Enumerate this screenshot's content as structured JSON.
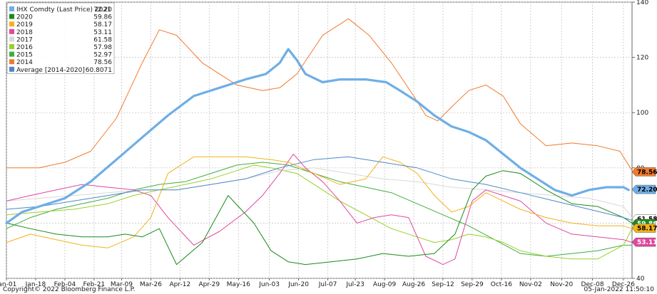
{
  "footer": {
    "copyright": "Copyright© 2022 Bloomberg Finance L.P.",
    "timestamp": "05-Jan-2022 11:50:10"
  },
  "chart_data": {
    "type": "line",
    "x_labels": [
      "Jan-01",
      "Jan-18",
      "Feb-04",
      "Feb-21",
      "Mar-09",
      "Mar-26",
      "Apr-12",
      "Apr-29",
      "May-16",
      "Jun-03",
      "Jun-20",
      "Jul-07",
      "Jul-23",
      "Aug-09",
      "Aug-26",
      "Sep-12",
      "Sep-29",
      "Oct-16",
      "Nov-02",
      "Nov-20",
      "Dec-08",
      "Dec-26"
    ],
    "x_label_days": [
      1,
      18,
      35,
      52,
      68,
      85,
      102,
      119,
      136,
      154,
      171,
      188,
      204,
      221,
      238,
      255,
      272,
      289,
      306,
      324,
      342,
      360
    ],
    "xlim": [
      1,
      365
    ],
    "ylim": [
      40,
      140
    ],
    "y_ticks": [
      40,
      60,
      80,
      100,
      120,
      140
    ],
    "y_tick_labels": [
      "40",
      "60",
      "80",
      "100",
      "120",
      "140"
    ],
    "grid": true,
    "legend_position": "top-left",
    "legend": [
      {
        "name": "IHX Comdty (Last Price) 2021",
        "value": "72.20",
        "color": "#6eaee6"
      },
      {
        "name": "2020",
        "value": "59.86",
        "color": "#1a8a1a"
      },
      {
        "name": "2019",
        "value": "58.17",
        "color": "#f2b21a"
      },
      {
        "name": "2018",
        "value": "53.11",
        "color": "#e0489e"
      },
      {
        "name": "2017",
        "value": "61.58",
        "color": "#d8d8d8"
      },
      {
        "name": "2016",
        "value": "57.98",
        "color": "#98d02a"
      },
      {
        "name": "2015",
        "value": "52.97",
        "color": "#3fae3f"
      },
      {
        "name": "2014",
        "value": "78.56",
        "color": "#f07a2e"
      },
      {
        "name": "Average  [2014-2020]",
        "value": "60.8071",
        "color": "#4d87c9"
      }
    ],
    "right_tags": [
      {
        "label": "78.56",
        "value": 78.56,
        "bg": "#f07a2e",
        "fg": "#000000"
      },
      {
        "label": "72.20",
        "value": 72.2,
        "bg": "#6eaee6",
        "fg": "#000000"
      },
      {
        "label": "61.58",
        "value": 61.58,
        "bg": "#ffffff",
        "fg": "#000000"
      },
      {
        "label": "59.86",
        "value": 59.86,
        "bg": "#1a8a1a",
        "fg": "#ffffff"
      },
      {
        "label": "58.17",
        "value": 58.17,
        "bg": "#f2b21a",
        "fg": "#000000"
      },
      {
        "label": "53.11",
        "value": 53.11,
        "bg": "#e0489e",
        "fg": "#ffffff"
      }
    ],
    "series": [
      {
        "name": "2014",
        "color": "#f07a2e",
        "width": 1,
        "x": [
          1,
          20,
          35,
          50,
          65,
          80,
          90,
          100,
          115,
          135,
          150,
          160,
          170,
          185,
          200,
          212,
          225,
          238,
          245,
          252,
          260,
          270,
          280,
          290,
          300,
          315,
          330,
          345,
          358,
          365
        ],
        "y": [
          80,
          80,
          82,
          86,
          98,
          118,
          130,
          128,
          118,
          110,
          108,
          109,
          114,
          128,
          134,
          128,
          118,
          106,
          99,
          97,
          102,
          108,
          110,
          106,
          96,
          88,
          89,
          88,
          86,
          79
        ]
      },
      {
        "name": "2015",
        "color": "#3fae3f",
        "width": 1,
        "x": [
          1,
          15,
          30,
          45,
          60,
          75,
          90,
          105,
          120,
          135,
          150,
          165,
          180,
          195,
          210,
          225,
          240,
          255,
          270,
          285,
          300,
          315,
          330,
          345,
          360,
          365
        ],
        "y": [
          58,
          62,
          65,
          67,
          69,
          72,
          74,
          75,
          78,
          81,
          82,
          81,
          78,
          75,
          73,
          71,
          67,
          63,
          59,
          54,
          49,
          48,
          49,
          50,
          52,
          52
        ]
      },
      {
        "name": "2016",
        "color": "#98d02a",
        "width": 1,
        "x": [
          1,
          20,
          40,
          60,
          75,
          90,
          105,
          120,
          135,
          145,
          155,
          170,
          180,
          195,
          210,
          225,
          240,
          250,
          260,
          270,
          280,
          290,
          300,
          315,
          330,
          345,
          360,
          365
        ],
        "y": [
          63,
          64,
          65,
          67,
          70,
          72,
          74,
          76,
          79,
          81,
          80,
          78,
          74,
          68,
          63,
          58,
          55,
          53,
          54,
          56,
          55,
          53,
          50,
          48,
          47,
          47,
          52,
          58
        ]
      },
      {
        "name": "2017",
        "color": "#d8d8d8",
        "width": 1,
        "x": [
          1,
          20,
          40,
          60,
          80,
          100,
          120,
          140,
          160,
          180,
          200,
          220,
          240,
          260,
          280,
          300,
          320,
          340,
          360,
          365
        ],
        "y": [
          68,
          69,
          70,
          71,
          72,
          72,
          74,
          76,
          79,
          80,
          78,
          76,
          75,
          73,
          72,
          71,
          70,
          69,
          66,
          62
        ]
      },
      {
        "name": "2018",
        "color": "#e0489e",
        "width": 1,
        "x": [
          1,
          15,
          30,
          45,
          60,
          75,
          85,
          95,
          110,
          125,
          140,
          150,
          160,
          168,
          175,
          185,
          195,
          205,
          215,
          225,
          235,
          245,
          255,
          262,
          272,
          280,
          290,
          300,
          315,
          330,
          345,
          360,
          365
        ],
        "y": [
          68,
          70,
          72,
          74,
          73,
          72,
          70,
          62,
          52,
          57,
          64,
          70,
          78,
          85,
          80,
          75,
          68,
          60,
          62,
          63,
          62,
          48,
          45,
          47,
          68,
          72,
          70,
          68,
          60,
          56,
          55,
          54,
          53
        ]
      },
      {
        "name": "2019",
        "color": "#f2b21a",
        "width": 1,
        "x": [
          1,
          15,
          30,
          45,
          60,
          75,
          85,
          95,
          110,
          125,
          140,
          155,
          165,
          180,
          195,
          210,
          220,
          230,
          240,
          250,
          260,
          270,
          280,
          290,
          300,
          315,
          330,
          345,
          360,
          365
        ],
        "y": [
          53,
          56,
          54,
          52,
          51,
          55,
          62,
          78,
          84,
          84,
          84,
          83,
          82,
          78,
          74,
          76,
          84,
          82,
          78,
          70,
          64,
          66,
          71,
          68,
          65,
          62,
          60,
          59,
          59,
          58
        ]
      },
      {
        "name": "2020",
        "color": "#1a8a1a",
        "width": 1,
        "x": [
          1,
          15,
          30,
          45,
          60,
          70,
          80,
          90,
          100,
          115,
          130,
          145,
          155,
          165,
          175,
          190,
          205,
          220,
          235,
          250,
          262,
          272,
          280,
          290,
          300,
          315,
          330,
          345,
          360,
          365
        ],
        "y": [
          60,
          58,
          56,
          55,
          55,
          56,
          55,
          58,
          45,
          53,
          70,
          60,
          50,
          46,
          45,
          46,
          47,
          49,
          48,
          49,
          56,
          72,
          77,
          79,
          78,
          72,
          67,
          66,
          62,
          60
        ]
      },
      {
        "name": "Average  [2014-2020]",
        "color": "#4d87c9",
        "width": 1,
        "x": [
          1,
          20,
          40,
          60,
          80,
          100,
          120,
          140,
          160,
          180,
          200,
          220,
          240,
          260,
          280,
          300,
          320,
          340,
          360,
          365
        ],
        "y": [
          65,
          66,
          68,
          70,
          72,
          72,
          74,
          76,
          80,
          83,
          84,
          82,
          80,
          76,
          74,
          71,
          68,
          65,
          62,
          61
        ]
      },
      {
        "name": "IHX Comdty (Last Price) 2021",
        "color": "#6eaee6",
        "width": 3.2,
        "x": [
          1,
          10,
          20,
          35,
          50,
          65,
          80,
          95,
          110,
          125,
          140,
          152,
          160,
          165,
          170,
          175,
          185,
          195,
          210,
          222,
          230,
          240,
          250,
          260,
          270,
          280,
          290,
          300,
          310,
          320,
          330,
          340,
          350,
          360,
          363
        ],
        "y": [
          60,
          64,
          66,
          69,
          75,
          83,
          91,
          99,
          106,
          109,
          112,
          114,
          118,
          123,
          119,
          114,
          111,
          112,
          112,
          111,
          108,
          104,
          99,
          95,
          93,
          90,
          85,
          80,
          76,
          72,
          70,
          72,
          73,
          73,
          72
        ]
      }
    ]
  }
}
